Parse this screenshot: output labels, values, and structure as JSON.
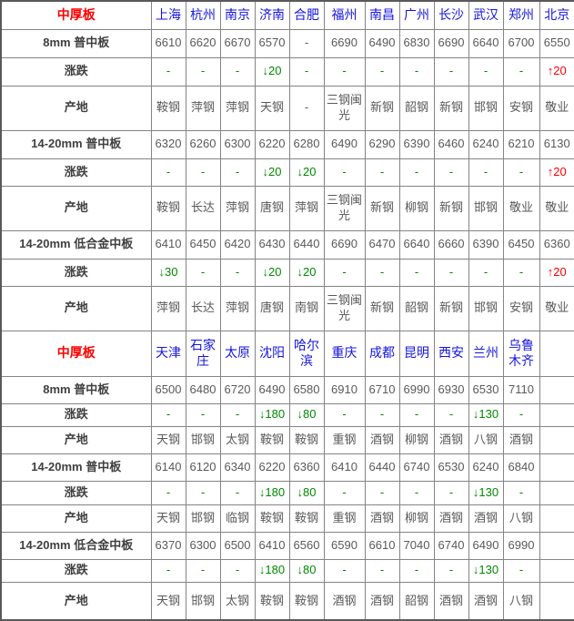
{
  "colors": {
    "section": "#ff0000",
    "city": "#1515dd",
    "row_label": "#3f3f3f",
    "value": "#595959",
    "down": "#008800",
    "up": "#fe0000"
  },
  "chart_data": [
    {
      "type": "table",
      "section_label": "中厚板",
      "cities": [
        "上海",
        "杭州",
        "南京",
        "济南",
        "合肥",
        "福州",
        "南昌",
        "广州",
        "长沙",
        "武汉",
        "郑州",
        "北京"
      ],
      "rows": [
        {
          "kind": "price",
          "label": "8mm 普中板",
          "cells": [
            "6610",
            "6620",
            "6670",
            "6570",
            "-",
            "6690",
            "6490",
            "6830",
            "6690",
            "6640",
            "6700",
            "6550"
          ]
        },
        {
          "kind": "change",
          "label": "涨跌",
          "cells": [
            "-",
            "-",
            "-",
            "↓20",
            "-",
            "-",
            "-",
            "-",
            "-",
            "-",
            "-",
            "↑20"
          ]
        },
        {
          "kind": "origin",
          "label": "产地",
          "cells": [
            "鞍钢",
            "萍钢",
            "萍钢",
            "天钢",
            "-",
            "三钢闽光",
            "新钢",
            "韶钢",
            "新钢",
            "邯钢",
            "安钢",
            "敬业"
          ]
        },
        {
          "kind": "price",
          "label": "14-20mm 普中板",
          "cells": [
            "6320",
            "6260",
            "6300",
            "6220",
            "6280",
            "6490",
            "6290",
            "6390",
            "6460",
            "6240",
            "6210",
            "6130"
          ]
        },
        {
          "kind": "change",
          "label": "涨跌",
          "cells": [
            "-",
            "-",
            "-",
            "↓20",
            "↓20",
            "-",
            "-",
            "-",
            "-",
            "-",
            "-",
            "↑20"
          ]
        },
        {
          "kind": "origin",
          "label": "产地",
          "cells": [
            "鞍钢",
            "长达",
            "萍钢",
            "唐钢",
            "萍钢",
            "三钢闽光",
            "新钢",
            "柳钢",
            "新钢",
            "邯钢",
            "敬业",
            "敬业"
          ]
        },
        {
          "kind": "price",
          "label": "14-20mm 低合金中板",
          "cells": [
            "6410",
            "6450",
            "6420",
            "6430",
            "6440",
            "6690",
            "6470",
            "6640",
            "6660",
            "6390",
            "6450",
            "6360"
          ]
        },
        {
          "kind": "change",
          "label": "涨跌",
          "cells": [
            "↓30",
            "-",
            "-",
            "↓20",
            "↓20",
            "-",
            "-",
            "-",
            "-",
            "-",
            "-",
            "↑20"
          ]
        },
        {
          "kind": "origin",
          "label": "产地",
          "cells": [
            "萍钢",
            "长达",
            "萍钢",
            "唐钢",
            "南钢",
            "三钢闽光",
            "新钢",
            "韶钢",
            "新钢",
            "邯钢",
            "安钢",
            "敬业"
          ]
        }
      ]
    },
    {
      "type": "table",
      "section_label": "中厚板",
      "cities": [
        "天津",
        "石家庄",
        "太原",
        "沈阳",
        "哈尔滨",
        "重庆",
        "成都",
        "昆明",
        "西安",
        "兰州",
        "乌鲁木齐",
        ""
      ],
      "rows": [
        {
          "kind": "price",
          "label": "8mm 普中板",
          "cells": [
            "6500",
            "6480",
            "6720",
            "6490",
            "6580",
            "6910",
            "6710",
            "6990",
            "6930",
            "6530",
            "7110",
            ""
          ]
        },
        {
          "kind": "change",
          "label": "涨跌",
          "cells": [
            "-",
            "-",
            "-",
            "↓180",
            "↓80",
            "-",
            "-",
            "-",
            "-",
            "↓130",
            "-",
            ""
          ]
        },
        {
          "kind": "origin",
          "label": "产地",
          "cells": [
            "天钢",
            "邯钢",
            "太钢",
            "鞍钢",
            "鞍钢",
            "重钢",
            "酒钢",
            "柳钢",
            "酒钢",
            "八钢",
            "酒钢",
            ""
          ]
        },
        {
          "kind": "price",
          "label": "14-20mm 普中板",
          "cells": [
            "6140",
            "6120",
            "6340",
            "6220",
            "6360",
            "6410",
            "6440",
            "6740",
            "6530",
            "6240",
            "6840",
            ""
          ]
        },
        {
          "kind": "change",
          "label": "涨跌",
          "cells": [
            "-",
            "-",
            "-",
            "↓180",
            "↓80",
            "-",
            "-",
            "-",
            "-",
            "↓130",
            "-",
            ""
          ]
        },
        {
          "kind": "origin",
          "label": "产地",
          "cells": [
            "天钢",
            "邯钢",
            "临钢",
            "鞍钢",
            "鞍钢",
            "重钢",
            "酒钢",
            "柳钢",
            "酒钢",
            "酒钢",
            "八钢",
            ""
          ]
        },
        {
          "kind": "price",
          "label": "14-20mm 低合金中板",
          "cells": [
            "6370",
            "6300",
            "6500",
            "6410",
            "6560",
            "6590",
            "6610",
            "7040",
            "6740",
            "6490",
            "6990",
            ""
          ]
        },
        {
          "kind": "change",
          "label": "涨跌",
          "cells": [
            "-",
            "-",
            "-",
            "↓180",
            "↓80",
            "-",
            "-",
            "-",
            "-",
            "↓130",
            "-",
            ""
          ]
        },
        {
          "kind": "origin",
          "label": "产地",
          "cells": [
            "天钢",
            "邯钢",
            "太钢",
            "鞍钢",
            "鞍钢",
            "酒钢",
            "酒钢",
            "韶钢",
            "酒钢",
            "酒钢",
            "八钢",
            ""
          ]
        }
      ]
    }
  ]
}
